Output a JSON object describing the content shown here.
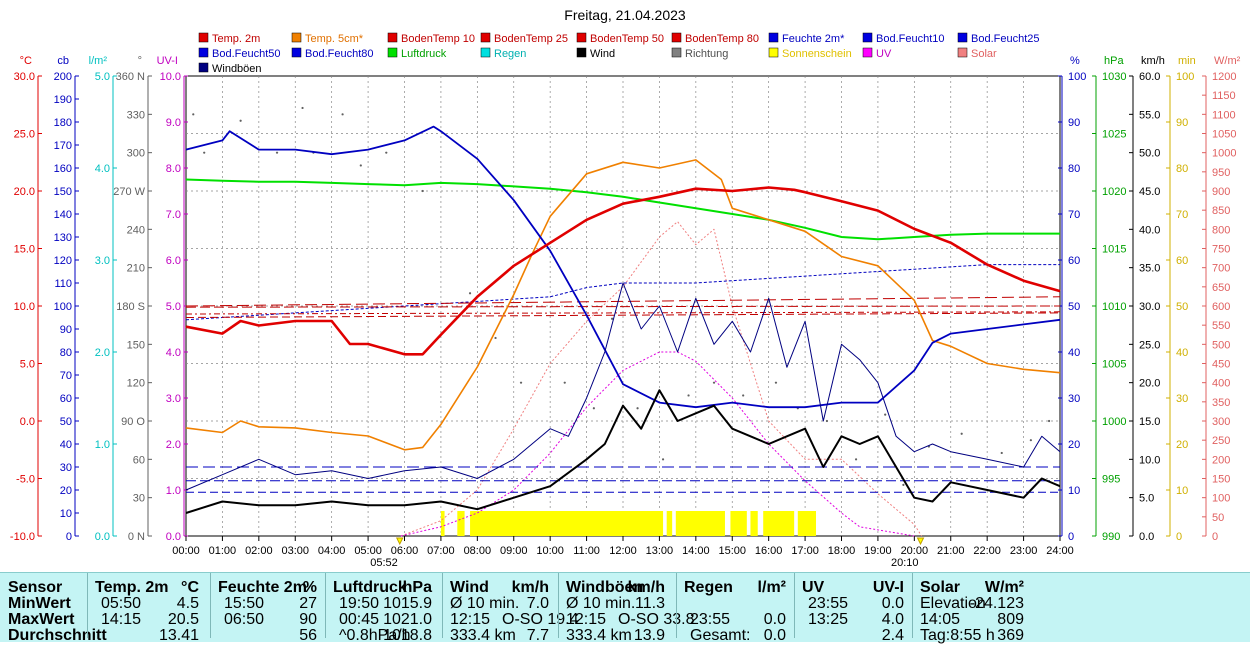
{
  "title": "Freitag, 21.04.2023",
  "legend": [
    {
      "label": "Temp. 2m",
      "color": "#e00000"
    },
    {
      "label": "Temp. 5cm*",
      "color": "#f08000"
    },
    {
      "label": "BodenTemp 10",
      "color": "#e00000"
    },
    {
      "label": "BodenTemp 25",
      "color": "#e00000"
    },
    {
      "label": "BodenTemp 50",
      "color": "#e00000"
    },
    {
      "label": "BodenTemp 80",
      "color": "#e00000"
    },
    {
      "label": "Feuchte 2m*",
      "color": "#0000e0"
    },
    {
      "label": "Bod.Feucht10",
      "color": "#0000e0"
    },
    {
      "label": "Bod.Feucht25",
      "color": "#0000e0"
    },
    {
      "label": "Bod.Feucht50",
      "color": "#0000e0"
    },
    {
      "label": "Bod.Feucht80",
      "color": "#0000e0"
    },
    {
      "label": "Luftdruck",
      "color": "#00e000"
    },
    {
      "label": "Regen",
      "color": "#00e0e0"
    },
    {
      "label": "Wind",
      "color": "#000000"
    },
    {
      "label": "Richtung",
      "color": "#808080"
    },
    {
      "label": "Sonnenschein",
      "color": "#ffff00"
    },
    {
      "label": "UV",
      "color": "#ff00ff"
    },
    {
      "label": "Solar",
      "color": "#f08080"
    },
    {
      "label": "Windböen",
      "color": "#000080"
    }
  ],
  "axes": {
    "temp": {
      "unit": "°C",
      "color": "#e00000",
      "ticks": [
        "30.0",
        "25.0",
        "20.0",
        "15.0",
        "10.0",
        "5.0",
        "0.0",
        "-5.0",
        "-10.0"
      ]
    },
    "cb": {
      "unit": "cb",
      "color": "#0000c0",
      "ticks": [
        "200",
        "190",
        "180",
        "170",
        "160",
        "150",
        "140",
        "130",
        "120",
        "110",
        "100",
        "90",
        "80",
        "70",
        "60",
        "50",
        "40",
        "30",
        "20",
        "10",
        "0"
      ]
    },
    "rain": {
      "unit": "l/m²",
      "color": "#00c0c0",
      "ticks": [
        "5.0",
        "4.0",
        "3.0",
        "2.0",
        "1.0",
        "0.0"
      ]
    },
    "dir": {
      "unit": "°",
      "color": "#606060",
      "ticks": [
        "360 N",
        "330",
        "300",
        "270 W",
        "240",
        "210",
        "180 S",
        "150",
        "120",
        "90 O",
        "60",
        "30",
        "0 N"
      ]
    },
    "uv": {
      "unit": "UV-I",
      "color": "#c000c0",
      "ticks": [
        "10.0",
        "9.0",
        "8.0",
        "7.0",
        "6.0",
        "5.0",
        "4.0",
        "3.0",
        "2.0",
        "1.0",
        "0.0"
      ]
    },
    "hum": {
      "unit": "%",
      "color": "#0000c0",
      "ticks": [
        "100",
        "90",
        "80",
        "70",
        "60",
        "50",
        "40",
        "30",
        "20",
        "10",
        "0"
      ]
    },
    "press": {
      "unit": "hPa",
      "color": "#00a000",
      "ticks": [
        "1030",
        "1025",
        "1020",
        "1015",
        "1010",
        "1005",
        "1000",
        "995",
        "990"
      ]
    },
    "wind": {
      "unit": "km/h",
      "color": "#000000",
      "ticks": [
        "60.0",
        "55.0",
        "50.0",
        "45.0",
        "40.0",
        "35.0",
        "30.0",
        "25.0",
        "20.0",
        "15.0",
        "10.0",
        "5.0",
        "0.0"
      ]
    },
    "sun": {
      "unit": "min",
      "color": "#d0b000",
      "ticks": [
        "100",
        "90",
        "80",
        "70",
        "60",
        "50",
        "40",
        "30",
        "20",
        "10",
        "0"
      ]
    },
    "solar": {
      "unit": "W/m²",
      "color": "#e06060",
      "ticks": [
        "1200",
        "1150",
        "1100",
        "1050",
        "1000",
        "950",
        "900",
        "850",
        "800",
        "750",
        "700",
        "650",
        "600",
        "550",
        "500",
        "450",
        "400",
        "350",
        "300",
        "250",
        "200",
        "150",
        "100",
        "50",
        "0"
      ]
    }
  },
  "x_ticks": [
    "00:00",
    "01:00",
    "02:00",
    "03:00",
    "04:00",
    "05:00",
    "06:00",
    "07:00",
    "08:00",
    "09:00",
    "10:00",
    "11:00",
    "12:00",
    "13:00",
    "14:00",
    "15:00",
    "16:00",
    "17:00",
    "18:00",
    "19:00",
    "20:00",
    "21:00",
    "22:00",
    "23:00",
    "24:00"
  ],
  "sunrise": {
    "label": "05:52",
    "hour": 5.87
  },
  "sunset": {
    "label": "20:10",
    "hour": 20.17
  },
  "chart_data": {
    "type": "line",
    "x_unit": "hour",
    "series": [
      {
        "name": "Temp. 2m",
        "axis": "temp",
        "x": [
          0,
          1,
          1.5,
          2,
          3,
          4,
          4.5,
          5,
          6,
          6.5,
          7,
          8,
          9,
          10,
          11,
          12,
          13,
          14,
          15,
          16,
          16.7,
          17,
          18,
          19,
          20,
          21,
          22,
          23,
          24
        ],
        "y": [
          8.2,
          7.6,
          8.7,
          8.3,
          8.7,
          8.7,
          6.7,
          6.7,
          5.8,
          5.8,
          7.5,
          10.8,
          13.5,
          15.5,
          17.5,
          18.9,
          19.5,
          20.2,
          20.0,
          20.3,
          20.1,
          19.9,
          19.1,
          18.3,
          16.7,
          15.5,
          13.6,
          12.2,
          11.3
        ]
      },
      {
        "name": "Temp. 5cm*",
        "axis": "temp",
        "x": [
          0,
          1,
          1.5,
          2,
          3,
          4,
          5,
          6,
          6.5,
          7,
          8,
          9,
          9.5,
          10,
          11,
          12,
          13,
          14,
          14.7,
          15,
          16,
          17,
          18,
          19,
          20,
          20.5,
          21,
          22,
          23,
          24
        ],
        "y": [
          -0.6,
          -1.0,
          0.0,
          -0.5,
          -0.6,
          -1.0,
          -1.3,
          -2.5,
          -2.3,
          -0.3,
          4.7,
          11.0,
          14.5,
          17.8,
          21.5,
          22.5,
          22.0,
          22.7,
          21.0,
          18.5,
          17.5,
          16.5,
          14.3,
          13.5,
          10.5,
          7.0,
          6.5,
          5.0,
          4.5,
          4.2
        ]
      },
      {
        "name": "BodenTemp 10",
        "axis": "temp",
        "x": [
          0,
          24
        ],
        "y": [
          9.0,
          9.4
        ]
      },
      {
        "name": "BodenTemp 25",
        "axis": "temp",
        "x": [
          0,
          24
        ],
        "y": [
          9.3,
          9.5
        ]
      },
      {
        "name": "BodenTemp 50",
        "axis": "temp",
        "x": [
          0,
          24
        ],
        "y": [
          9.9,
          10.0
        ]
      },
      {
        "name": "BodenTemp 80",
        "axis": "temp",
        "x": [
          0,
          24
        ],
        "y": [
          10.0,
          10.8
        ]
      },
      {
        "name": "Feuchte 2m*",
        "axis": "hum",
        "x": [
          0,
          1,
          1.2,
          2,
          3,
          4,
          5,
          6,
          6.8,
          7,
          8,
          9,
          10,
          11,
          12,
          13,
          14,
          15,
          16,
          17,
          18,
          19,
          20,
          20.5,
          21,
          22,
          23,
          24
        ],
        "y": [
          84,
          86,
          88,
          84,
          84,
          83,
          84,
          86,
          89,
          88,
          82,
          73,
          62,
          48,
          33,
          29,
          28,
          29,
          28,
          28,
          29,
          29,
          36,
          42,
          44,
          45,
          46,
          47
        ]
      },
      {
        "name": "Bod.Feucht10",
        "axis": "hum",
        "x": [
          0,
          2,
          4,
          6,
          8,
          10,
          11,
          12,
          14,
          16,
          18,
          20,
          22,
          24
        ],
        "y": [
          47,
          48,
          49,
          50,
          51,
          52,
          54,
          55,
          55,
          56,
          57,
          58,
          59,
          59
        ]
      },
      {
        "name": "Bod.Feucht25",
        "axis": "hum",
        "x": [
          0,
          24
        ],
        "y": [
          9.5,
          9.5
        ]
      },
      {
        "name": "Bod.Feucht50",
        "axis": "hum",
        "x": [
          0,
          24
        ],
        "y": [
          12.0,
          12.0
        ]
      },
      {
        "name": "Bod.Feucht80",
        "axis": "hum",
        "x": [
          0,
          24
        ],
        "y": [
          15.0,
          15.0
        ]
      },
      {
        "name": "Luftdruck",
        "axis": "press",
        "x": [
          0,
          1,
          2,
          3,
          4,
          5,
          6,
          7,
          8,
          9,
          10,
          11,
          12,
          13,
          14,
          15,
          16,
          17,
          18,
          19,
          20,
          21,
          22,
          23,
          24
        ],
        "y": [
          1021.0,
          1020.9,
          1020.8,
          1020.8,
          1020.7,
          1020.6,
          1020.5,
          1020.7,
          1020.6,
          1020.4,
          1020.2,
          1019.9,
          1019.5,
          1019.0,
          1018.5,
          1018.0,
          1017.5,
          1016.8,
          1016.0,
          1015.8,
          1016.0,
          1016.2,
          1016.3,
          1016.3,
          1016.3
        ]
      },
      {
        "name": "Wind",
        "axis": "wind",
        "x": [
          0,
          1,
          2,
          3,
          4,
          5,
          6,
          7,
          8,
          9,
          10,
          11,
          11.5,
          12,
          12.5,
          13,
          13.5,
          14,
          14.5,
          15,
          15.5,
          16,
          16.5,
          17,
          17.5,
          18,
          18.5,
          19,
          19.5,
          20,
          20.5,
          21,
          22,
          23,
          23.5,
          24
        ],
        "y": [
          3.0,
          4.5,
          4.0,
          4.0,
          4.5,
          4.0,
          4.0,
          4.5,
          3.5,
          5.0,
          6.5,
          10.0,
          12.0,
          17.0,
          14.0,
          19.0,
          15.0,
          16.0,
          17.0,
          14.0,
          13.0,
          12.0,
          13.0,
          14.0,
          9.0,
          13.0,
          12.0,
          13.0,
          9.0,
          5.0,
          4.5,
          7.0,
          6.0,
          5.0,
          7.5,
          6.5
        ]
      },
      {
        "name": "Windböen",
        "axis": "wind",
        "x": [
          0,
          1,
          2,
          3,
          4,
          5,
          6,
          7,
          8,
          9,
          10,
          10.5,
          11,
          11.5,
          12,
          12.5,
          13,
          13.5,
          14,
          14.5,
          15,
          15.5,
          16,
          16.5,
          17,
          17.5,
          18,
          18.5,
          19,
          19.5,
          20,
          20.5,
          21,
          22,
          23,
          23.5,
          24
        ],
        "y": [
          6.0,
          8.0,
          10.0,
          8.0,
          8.5,
          7.5,
          8.5,
          9.0,
          7.5,
          10.0,
          14.0,
          13.0,
          18.0,
          24.0,
          33.0,
          27.0,
          30.0,
          24.0,
          31.0,
          25.0,
          28.0,
          24.0,
          31.0,
          22.0,
          28.0,
          15.0,
          25.0,
          23.0,
          20.0,
          13.0,
          11.0,
          12.0,
          11.0,
          10.0,
          9.0,
          13.0,
          11.0
        ]
      },
      {
        "name": "Solar",
        "axis": "solar",
        "x": [
          5.9,
          7,
          8,
          9,
          10,
          11,
          12,
          13,
          13.5,
          14,
          14.5,
          15,
          16,
          17,
          18,
          19,
          20,
          20.2
        ],
        "y": [
          0,
          40,
          120,
          280,
          450,
          560,
          650,
          780,
          820,
          760,
          800,
          600,
          300,
          200,
          200,
          110,
          30,
          0
        ]
      },
      {
        "name": "UV",
        "axis": "uv",
        "x": [
          5.9,
          7,
          8,
          9,
          10,
          11,
          12,
          13,
          13.5,
          14,
          15,
          16,
          17,
          18,
          18.5,
          20
        ],
        "y": [
          0,
          0.2,
          0.5,
          1.0,
          1.8,
          2.8,
          3.6,
          4.0,
          4.0,
          3.8,
          3.0,
          2.0,
          1.2,
          0.5,
          0.2,
          0
        ]
      }
    ],
    "sunshine_minutes": [
      {
        "from": 7.0,
        "to": 7.1
      },
      {
        "from": 7.45,
        "to": 7.65
      },
      {
        "from": 7.8,
        "to": 13.1
      },
      {
        "from": 13.2,
        "to": 13.35
      },
      {
        "from": 13.45,
        "to": 14.8
      },
      {
        "from": 14.95,
        "to": 15.4
      },
      {
        "from": 15.5,
        "to": 15.7
      },
      {
        "from": 15.85,
        "to": 16.7
      },
      {
        "from": 16.8,
        "to": 17.3
      }
    ],
    "wind_direction_deg": [
      {
        "x": 0.2,
        "y": 330
      },
      {
        "x": 0.5,
        "y": 300
      },
      {
        "x": 1.5,
        "y": 325
      },
      {
        "x": 2.5,
        "y": 300
      },
      {
        "x": 3.2,
        "y": 335
      },
      {
        "x": 3.5,
        "y": 300
      },
      {
        "x": 4.3,
        "y": 330
      },
      {
        "x": 4.8,
        "y": 290
      },
      {
        "x": 5.5,
        "y": 300
      },
      {
        "x": 6.5,
        "y": 270
      },
      {
        "x": 7.8,
        "y": 190
      },
      {
        "x": 8.5,
        "y": 155
      },
      {
        "x": 9.2,
        "y": 120
      },
      {
        "x": 10.4,
        "y": 120
      },
      {
        "x": 11.2,
        "y": 100
      },
      {
        "x": 11.7,
        "y": 170
      },
      {
        "x": 12.4,
        "y": 100
      },
      {
        "x": 13.1,
        "y": 60
      },
      {
        "x": 13.8,
        "y": 110
      },
      {
        "x": 14.5,
        "y": 120
      },
      {
        "x": 15.3,
        "y": 110
      },
      {
        "x": 16.2,
        "y": 120
      },
      {
        "x": 16.8,
        "y": 100
      },
      {
        "x": 17.6,
        "y": 90
      },
      {
        "x": 18.4,
        "y": 60
      },
      {
        "x": 19.2,
        "y": 95
      },
      {
        "x": 19.7,
        "y": 40
      },
      {
        "x": 20.4,
        "y": 70
      },
      {
        "x": 21.3,
        "y": 80
      },
      {
        "x": 22.4,
        "y": 65
      },
      {
        "x": 23.2,
        "y": 75
      },
      {
        "x": 23.7,
        "y": 90
      }
    ]
  },
  "stats": {
    "rows": [
      "Sensor",
      "MinWert",
      "MaxWert",
      "Durchschnitt"
    ],
    "columns": [
      {
        "name": "Temp. 2m",
        "unit": "°C",
        "rows": [
          [
            "05:50",
            "4.5"
          ],
          [
            "14:15",
            "20.5"
          ],
          [
            "",
            "13.41"
          ]
        ]
      },
      {
        "name": "Feuchte 2m",
        "unit": "%",
        "rows": [
          [
            "15:50",
            "27"
          ],
          [
            "06:50",
            "90"
          ],
          [
            "",
            "56"
          ]
        ]
      },
      {
        "name": "Luftdruck",
        "unit": "hPa",
        "rows": [
          [
            "19:50",
            "1015.9"
          ],
          [
            "00:45",
            "1021.0"
          ],
          [
            "^0.8hPa/h",
            "1018.8"
          ]
        ]
      },
      {
        "name": "Wind",
        "unit": "km/h",
        "rows": [
          [
            "Ø 10 min.",
            "",
            "7.0"
          ],
          [
            "12:15",
            "O-SO 19.4",
            ""
          ],
          [
            "333.4 km",
            "",
            "7.7"
          ]
        ]
      },
      {
        "name": "Windböen",
        "unit": "km/h",
        "rows": [
          [
            "Ø 10 min.",
            "",
            "11.3"
          ],
          [
            "12:15",
            "O-SO 33.8",
            ""
          ],
          [
            "333.4 km",
            "",
            "13.9"
          ]
        ]
      },
      {
        "name": "Regen",
        "unit": "l/m²",
        "rows": [
          [
            "",
            ""
          ],
          [
            "23:55",
            "0.0"
          ],
          [
            "Gesamt:",
            "0.0"
          ]
        ]
      },
      {
        "name": "UV",
        "unit": "UV-I",
        "rows": [
          [
            "23:55",
            "0.0"
          ],
          [
            "13:25",
            "4.0"
          ],
          [
            "",
            "2.4"
          ]
        ]
      },
      {
        "name": "Solar",
        "unit": "W/m²",
        "rows": [
          [
            "Elevation",
            "-24.123"
          ],
          [
            "14:05",
            "809"
          ],
          [
            "Tag:8:55 h",
            "369"
          ]
        ]
      }
    ]
  }
}
